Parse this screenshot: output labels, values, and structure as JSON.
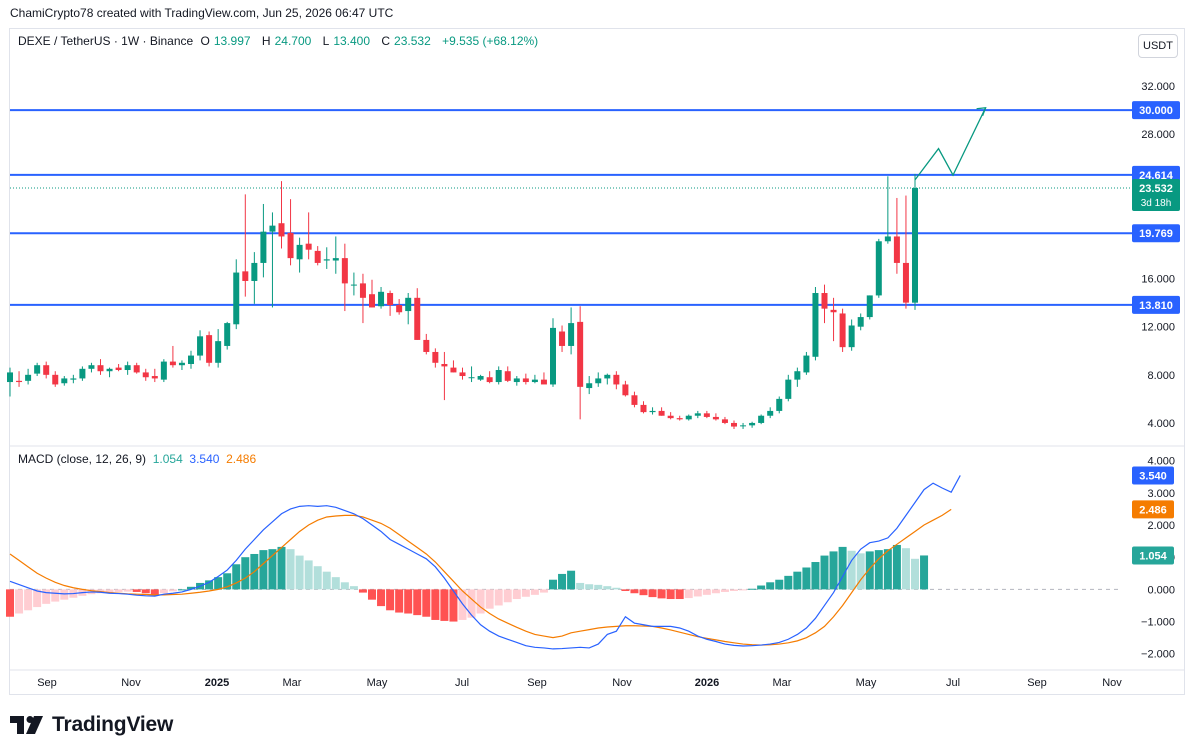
{
  "header": {
    "credit": "ChamiCrypto78 created with TradingView.com, Jun 25, 2026 06:47 UTC",
    "symbol": "DEXE / TetherUS · 1W · Binance",
    "o_label": "O",
    "o_value": "13.997",
    "h_label": "H",
    "h_value": "24.700",
    "l_label": "L",
    "l_value": "13.400",
    "c_label": "C",
    "c_value": "23.532",
    "change": "+9.535 (+68.12%)",
    "unit": "USDT"
  },
  "macd_legend": {
    "title": "MACD (close, 12, 26, 9)",
    "hist_value": "1.054",
    "macd_value": "3.540",
    "signal_value": "2.486"
  },
  "logo": {
    "text": "TradingView"
  },
  "colors": {
    "up": "#089981",
    "down": "#f23645",
    "level": "#2962ff",
    "macd": "#2962ff",
    "signal": "#f57c00",
    "hist_up_strong": "#26a69a",
    "hist_up_weak": "#b2dfdb",
    "hist_down_strong": "#ff5252",
    "hist_down_weak": "#ffcdd2",
    "projection": "#089981"
  },
  "chart_data": [
    {
      "type": "candlestick",
      "title": "DEXE / TetherUS · 1W · Binance",
      "ylim": [
        2.5,
        34
      ],
      "y_ticks": [
        "32.000",
        "28.000",
        "24.000",
        "20.000",
        "16.000",
        "12.000",
        "8.000",
        "4.000"
      ],
      "x_ticks": [
        "Sep",
        "Nov",
        "2025",
        "Mar",
        "May",
        "Jul",
        "Sep",
        "Nov",
        "2026",
        "Mar",
        "May",
        "Jul",
        "Sep",
        "Nov"
      ],
      "x_ticks_bold": [
        "2025",
        "2026"
      ],
      "levels": [
        {
          "value": 30.0,
          "label": "30.000"
        },
        {
          "value": 24.614,
          "label": "24.614"
        },
        {
          "value": 19.769,
          "label": "19.769"
        },
        {
          "value": 13.81,
          "label": "13.810"
        }
      ],
      "last_price": {
        "value": 23.532,
        "label": "23.532",
        "countdown": "3d 18h"
      },
      "projection": [
        [
          0,
          24.2
        ],
        [
          2.6,
          26.8
        ],
        [
          4.2,
          24.6
        ],
        [
          7.8,
          30.2
        ]
      ],
      "candles": [
        [
          7.4,
          8.6,
          6.2,
          8.2
        ],
        [
          7.5,
          8.3,
          7.0,
          7.4
        ],
        [
          7.5,
          8.5,
          7.2,
          8.0
        ],
        [
          8.1,
          9.0,
          7.9,
          8.8
        ],
        [
          8.8,
          9.1,
          7.7,
          8.0
        ],
        [
          8.0,
          8.3,
          7.0,
          7.2
        ],
        [
          7.3,
          7.9,
          7.1,
          7.7
        ],
        [
          7.6,
          8.0,
          7.3,
          7.7
        ],
        [
          7.7,
          8.7,
          7.5,
          8.5
        ],
        [
          8.5,
          9.0,
          8.2,
          8.8
        ],
        [
          8.8,
          9.3,
          8.0,
          8.3
        ],
        [
          8.3,
          8.6,
          7.8,
          8.5
        ],
        [
          8.6,
          8.9,
          8.3,
          8.4
        ],
        [
          8.4,
          9.1,
          8.0,
          8.8
        ],
        [
          8.8,
          9.0,
          8.1,
          8.2
        ],
        [
          8.2,
          8.5,
          7.5,
          7.8
        ],
        [
          7.9,
          8.5,
          7.4,
          7.7
        ],
        [
          7.6,
          9.3,
          7.4,
          9.1
        ],
        [
          9.1,
          10.4,
          8.6,
          8.8
        ],
        [
          8.8,
          9.2,
          8.4,
          9.0
        ],
        [
          8.9,
          10.0,
          8.5,
          9.6
        ],
        [
          9.6,
          11.7,
          9.2,
          11.2
        ],
        [
          11.3,
          11.6,
          8.7,
          9.0
        ],
        [
          9.0,
          11.8,
          8.6,
          10.8
        ],
        [
          10.4,
          12.4,
          10.1,
          12.3
        ],
        [
          12.2,
          17.6,
          11.8,
          16.5
        ],
        [
          16.6,
          23.0,
          14.5,
          15.8
        ],
        [
          15.8,
          18.2,
          13.9,
          17.3
        ],
        [
          17.3,
          22.2,
          16.1,
          19.9
        ],
        [
          19.9,
          21.5,
          13.6,
          20.4
        ],
        [
          20.6,
          24.1,
          18.5,
          19.5
        ],
        [
          19.8,
          22.6,
          17.1,
          17.7
        ],
        [
          17.6,
          19.4,
          16.5,
          18.8
        ],
        [
          18.9,
          21.5,
          17.6,
          18.4
        ],
        [
          18.3,
          18.7,
          17.1,
          17.3
        ],
        [
          17.5,
          18.6,
          16.8,
          17.6
        ],
        [
          17.5,
          19.5,
          16.4,
          17.7
        ],
        [
          17.7,
          18.9,
          13.3,
          15.6
        ],
        [
          15.5,
          16.5,
          14.6,
          15.5
        ],
        [
          15.6,
          16.4,
          12.3,
          14.4
        ],
        [
          14.7,
          15.9,
          13.6,
          13.6
        ],
        [
          13.7,
          15.3,
          13.5,
          14.9
        ],
        [
          14.8,
          15.0,
          12.9,
          13.8
        ],
        [
          13.8,
          14.3,
          13.0,
          13.2
        ],
        [
          13.3,
          14.8,
          12.2,
          14.4
        ],
        [
          14.4,
          15.2,
          10.9,
          10.9
        ],
        [
          10.9,
          11.4,
          9.7,
          9.9
        ],
        [
          9.9,
          10.2,
          8.6,
          9.0
        ],
        [
          8.9,
          9.9,
          5.9,
          8.7
        ],
        [
          8.6,
          9.2,
          8.2,
          8.2
        ],
        [
          8.2,
          8.6,
          7.6,
          7.9
        ],
        [
          7.8,
          8.7,
          7.4,
          7.8
        ],
        [
          7.6,
          8.0,
          7.5,
          7.9
        ],
        [
          7.8,
          8.3,
          7.3,
          7.4
        ],
        [
          7.4,
          8.7,
          7.2,
          8.4
        ],
        [
          8.3,
          8.7,
          7.4,
          7.5
        ],
        [
          7.4,
          7.9,
          7.1,
          7.7
        ],
        [
          7.7,
          8.1,
          7.2,
          7.4
        ],
        [
          7.4,
          8.0,
          7.3,
          7.6
        ],
        [
          7.6,
          8.2,
          7.3,
          7.2
        ],
        [
          7.2,
          12.7,
          7.0,
          11.9
        ],
        [
          11.6,
          12.1,
          9.9,
          10.4
        ],
        [
          10.4,
          13.6,
          9.7,
          12.3
        ],
        [
          12.4,
          13.7,
          4.3,
          7.0
        ],
        [
          6.9,
          7.9,
          6.4,
          7.3
        ],
        [
          7.3,
          8.2,
          7.0,
          7.7
        ],
        [
          7.7,
          8.1,
          7.2,
          8.0
        ],
        [
          8.0,
          8.3,
          6.8,
          7.2
        ],
        [
          7.2,
          7.5,
          6.2,
          6.3
        ],
        [
          6.3,
          6.6,
          5.3,
          5.5
        ],
        [
          5.5,
          5.8,
          4.8,
          4.9
        ],
        [
          4.9,
          5.3,
          4.7,
          5.0
        ],
        [
          5.0,
          5.3,
          4.6,
          4.6
        ],
        [
          4.6,
          4.9,
          4.3,
          4.4
        ],
        [
          4.4,
          4.6,
          4.2,
          4.3
        ],
        [
          4.3,
          4.7,
          4.2,
          4.6
        ],
        [
          4.6,
          5.0,
          4.4,
          4.8
        ],
        [
          4.8,
          5.0,
          4.4,
          4.5
        ],
        [
          4.5,
          4.8,
          4.2,
          4.3
        ],
        [
          4.3,
          4.5,
          3.9,
          4.0
        ],
        [
          4.0,
          4.2,
          3.5,
          3.7
        ],
        [
          3.8,
          4.0,
          3.5,
          3.8
        ],
        [
          3.8,
          4.1,
          3.6,
          4.0
        ],
        [
          4.0,
          4.7,
          3.9,
          4.6
        ],
        [
          4.6,
          5.3,
          4.4,
          5.0
        ],
        [
          5.0,
          6.2,
          4.8,
          6.0
        ],
        [
          6.0,
          8.0,
          5.8,
          7.6
        ],
        [
          7.6,
          8.6,
          7.0,
          8.3
        ],
        [
          8.2,
          9.9,
          8.0,
          9.6
        ],
        [
          9.5,
          15.3,
          9.2,
          14.8
        ],
        [
          14.8,
          15.5,
          12.3,
          13.5
        ],
        [
          13.4,
          14.4,
          10.8,
          13.2
        ],
        [
          13.1,
          13.5,
          9.9,
          10.3
        ],
        [
          10.3,
          12.6,
          10.0,
          12.1
        ],
        [
          12.0,
          13.1,
          11.7,
          12.8
        ],
        [
          12.8,
          14.6,
          12.6,
          14.6
        ],
        [
          14.6,
          19.3,
          14.4,
          19.1
        ],
        [
          19.1,
          24.5,
          18.9,
          19.5
        ],
        [
          19.5,
          22.7,
          16.4,
          17.3
        ],
        [
          17.3,
          22.9,
          13.5,
          14.0
        ],
        [
          13.997,
          24.7,
          13.4,
          23.532
        ]
      ]
    },
    {
      "type": "macd",
      "title": "MACD (close, 12, 26, 9)",
      "ylim": [
        -2.35,
        4.3
      ],
      "y_ticks": [
        "4.000",
        "3.000",
        "2.000",
        "1.000",
        "0.000",
        "−1.000",
        "−2.000"
      ],
      "series": [
        {
          "name": "Histogram",
          "values": [
            -0.85,
            -0.75,
            -0.65,
            -0.55,
            -0.45,
            -0.38,
            -0.32,
            -0.26,
            -0.2,
            -0.15,
            -0.12,
            -0.1,
            -0.08,
            -0.07,
            -0.08,
            -0.12,
            -0.16,
            -0.12,
            -0.06,
            0.0,
            0.08,
            0.2,
            0.28,
            0.38,
            0.5,
            0.78,
            1.0,
            1.1,
            1.22,
            1.25,
            1.32,
            1.25,
            1.05,
            0.9,
            0.72,
            0.55,
            0.38,
            0.22,
            0.1,
            -0.1,
            -0.32,
            -0.52,
            -0.65,
            -0.72,
            -0.75,
            -0.8,
            -0.85,
            -0.95,
            -0.98,
            -1.0,
            -0.95,
            -0.88,
            -0.75,
            -0.6,
            -0.5,
            -0.4,
            -0.3,
            -0.23,
            -0.17,
            -0.1,
            0.3,
            0.48,
            0.58,
            0.2,
            0.16,
            0.14,
            0.1,
            0.05,
            -0.05,
            -0.12,
            -0.18,
            -0.24,
            -0.28,
            -0.3,
            -0.3,
            -0.27,
            -0.22,
            -0.17,
            -0.12,
            -0.08,
            -0.05,
            -0.03,
            0.02,
            0.12,
            0.22,
            0.3,
            0.42,
            0.55,
            0.68,
            0.85,
            1.05,
            1.18,
            1.32,
            1.2,
            1.12,
            1.18,
            1.22,
            1.25,
            1.38,
            1.28,
            0.95,
            1.054
          ]
        },
        {
          "name": "MACD",
          "values": [
            0.25,
            0.15,
            0.05,
            -0.05,
            -0.1,
            -0.12,
            -0.14,
            -0.13,
            -0.1,
            -0.08,
            -0.09,
            -0.12,
            -0.13,
            -0.15,
            -0.18,
            -0.2,
            -0.21,
            -0.15,
            -0.12,
            -0.08,
            0.0,
            0.1,
            0.22,
            0.4,
            0.6,
            0.9,
            1.25,
            1.55,
            1.85,
            2.1,
            2.35,
            2.5,
            2.58,
            2.6,
            2.58,
            2.6,
            2.55,
            2.45,
            2.35,
            2.2,
            2.0,
            1.8,
            1.55,
            1.4,
            1.25,
            1.1,
            0.95,
            0.7,
            0.35,
            -0.05,
            -0.45,
            -0.8,
            -1.1,
            -1.3,
            -1.45,
            -1.55,
            -1.65,
            -1.75,
            -1.8,
            -1.82,
            -1.85,
            -1.84,
            -1.82,
            -1.8,
            -1.82,
            -1.7,
            -1.4,
            -1.3,
            -0.85,
            -1.05,
            -1.1,
            -1.15,
            -1.15,
            -1.15,
            -1.2,
            -1.3,
            -1.45,
            -1.55,
            -1.62,
            -1.7,
            -1.74,
            -1.76,
            -1.75,
            -1.73,
            -1.7,
            -1.65,
            -1.55,
            -1.4,
            -1.2,
            -0.9,
            -0.5,
            -0.1,
            0.4,
            0.9,
            1.25,
            1.45,
            1.5,
            1.6,
            1.9,
            2.3,
            2.7,
            3.1,
            3.3,
            3.15,
            3.02,
            3.54
          ]
        },
        {
          "name": "Signal",
          "values": [
            1.1,
            0.9,
            0.7,
            0.5,
            0.35,
            0.22,
            0.12,
            0.05,
            0.0,
            -0.04,
            -0.07,
            -0.1,
            -0.12,
            -0.14,
            -0.15,
            -0.16,
            -0.17,
            -0.17,
            -0.16,
            -0.15,
            -0.12,
            -0.09,
            -0.05,
            0.0,
            0.08,
            0.2,
            0.35,
            0.55,
            0.8,
            1.05,
            1.3,
            1.55,
            1.8,
            2.0,
            2.15,
            2.25,
            2.28,
            2.3,
            2.3,
            2.25,
            2.15,
            2.05,
            1.9,
            1.7,
            1.5,
            1.3,
            1.1,
            0.85,
            0.55,
            0.25,
            -0.05,
            -0.3,
            -0.55,
            -0.75,
            -0.92,
            -1.05,
            -1.18,
            -1.3,
            -1.4,
            -1.45,
            -1.5,
            -1.45,
            -1.35,
            -1.3,
            -1.25,
            -1.2,
            -1.17,
            -1.15,
            -1.13,
            -1.13,
            -1.14,
            -1.15,
            -1.2,
            -1.26,
            -1.33,
            -1.4,
            -1.47,
            -1.52,
            -1.57,
            -1.62,
            -1.66,
            -1.7,
            -1.72,
            -1.73,
            -1.72,
            -1.7,
            -1.66,
            -1.6,
            -1.5,
            -1.35,
            -1.15,
            -0.85,
            -0.5,
            -0.1,
            0.3,
            0.65,
            0.95,
            1.2,
            1.4,
            1.6,
            1.8,
            2.0,
            2.15,
            2.3,
            2.486
          ]
        }
      ]
    }
  ]
}
